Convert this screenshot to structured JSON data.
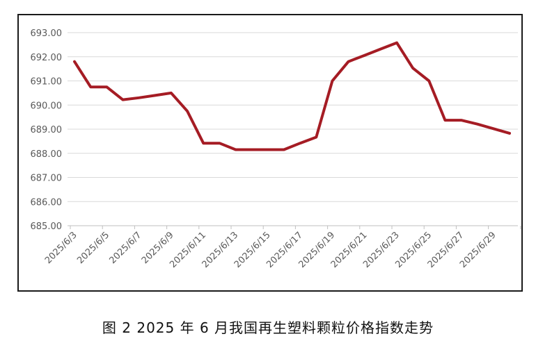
{
  "chart_data": {
    "type": "line",
    "x": [
      "2025/6/3",
      "2025/6/4",
      "2025/6/5",
      "2025/6/6",
      "2025/6/7",
      "2025/6/8",
      "2025/6/9",
      "2025/6/10",
      "2025/6/11",
      "2025/6/12",
      "2025/6/13",
      "2025/6/14",
      "2025/6/15",
      "2025/6/16",
      "2025/6/17",
      "2025/6/18",
      "2025/6/19",
      "2025/6/20",
      "2025/6/21",
      "2025/6/22",
      "2025/6/23",
      "2025/6/24",
      "2025/6/25",
      "2025/6/26",
      "2025/6/27",
      "2025/6/28",
      "2025/6/29",
      "2025/6/30"
    ],
    "x_tick_labels": [
      "2025/6/3",
      "2025/6/5",
      "2025/6/7",
      "2025/6/9",
      "2025/6/11",
      "2025/6/13",
      "2025/6/15",
      "2025/6/17",
      "2025/6/19",
      "2025/6/21",
      "2025/6/23",
      "2025/6/25",
      "2025/6/27",
      "2025/6/29"
    ],
    "series": [
      {
        "values": [
          691.8,
          690.75,
          690.75,
          690.22,
          690.3,
          690.4,
          690.5,
          689.75,
          688.42,
          688.42,
          688.15,
          688.15,
          688.15,
          688.15,
          688.42,
          688.67,
          691.0,
          691.8,
          692.06,
          692.32,
          692.58,
          691.53,
          691.0,
          689.37,
          689.37,
          689.21,
          689.02,
          688.83
        ]
      }
    ],
    "ylim": [
      685.0,
      693.0
    ],
    "y_tick_labels": [
      "693.00",
      "692.00",
      "691.00",
      "690.00",
      "689.00",
      "688.00",
      "687.00",
      "686.00",
      "685.00"
    ],
    "grid": true,
    "legend": "none",
    "colors": {
      "line": "#a51c24",
      "grid": "#d9d9d9",
      "tick_text": "#595959"
    },
    "title": "",
    "xlabel": "",
    "ylabel": ""
  },
  "caption": "图 2  2025 年 6 月我国再生塑料颗粒价格指数走势"
}
